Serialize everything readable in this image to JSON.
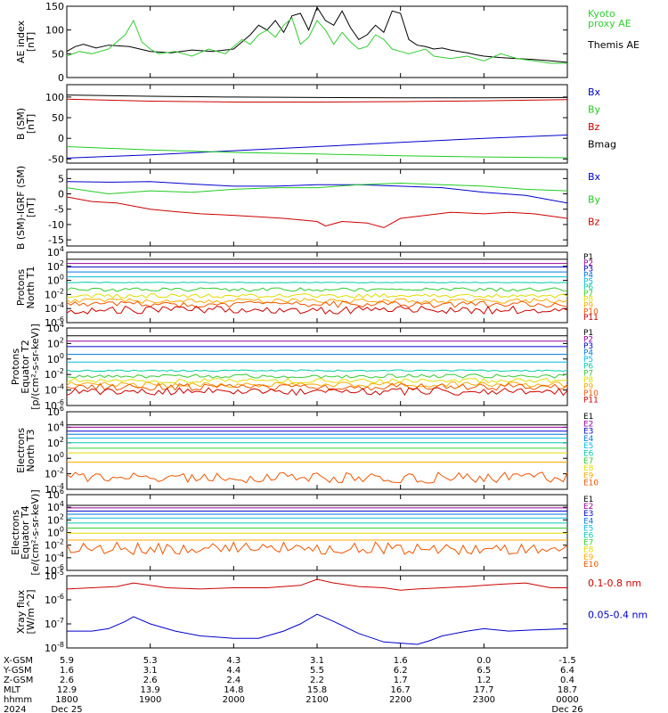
{
  "colors": {
    "black": "#000000",
    "red": "#cc0000",
    "green": "#22cc22",
    "blue": "#0000cc",
    "kyoto": "#33cc33",
    "xray_red": "#cc0000",
    "xray_blue": "#0000cc"
  },
  "channel_colors": [
    "#000000",
    "#990099",
    "#0000cc",
    "#0077dd",
    "#00bbdd",
    "#00ccaa",
    "#33cc33",
    "#dddd00",
    "#ffaa00",
    "#ee5500",
    "#cc0000",
    "#990000"
  ],
  "chart_data": [
    {
      "id": "ae",
      "type": "line",
      "ylabel": "AE index\n[nT]",
      "ylim": [
        0,
        150
      ],
      "yticks": [
        "0",
        "50",
        "100",
        "150"
      ],
      "legend": [
        {
          "name": "Kyoto proxy AE",
          "lines": [
            "Kyoto",
            "proxy AE"
          ],
          "color": "#33cc33"
        },
        {
          "name": "Themis AE",
          "lines": [
            "Themis AE"
          ],
          "color": "#000000"
        }
      ],
      "series": [
        {
          "name": "Themis AE",
          "color": "#000000",
          "x": [
            0,
            0.1,
            0.2,
            0.35,
            0.5,
            0.75,
            1,
            1.25,
            1.5,
            1.75,
            2,
            2.1,
            2.2,
            2.3,
            2.4,
            2.5,
            2.6,
            2.7,
            2.8,
            2.9,
            3,
            3.1,
            3.2,
            3.3,
            3.4,
            3.5,
            3.6,
            3.7,
            3.8,
            3.9,
            4,
            4.1,
            4.2,
            4.3,
            4.4,
            4.5,
            4.6,
            4.7,
            4.8,
            4.9,
            5,
            5.2,
            5.4,
            5.6,
            5.8,
            6
          ],
          "y": [
            55,
            65,
            70,
            62,
            68,
            65,
            55,
            52,
            58,
            55,
            60,
            75,
            90,
            110,
            100,
            120,
            95,
            130,
            135,
            100,
            148,
            120,
            110,
            140,
            105,
            80,
            90,
            110,
            95,
            140,
            135,
            80,
            68,
            65,
            60,
            62,
            58,
            55,
            52,
            48,
            45,
            42,
            40,
            38,
            35,
            32
          ]
        },
        {
          "name": "Kyoto proxy AE",
          "color": "#33cc33",
          "x": [
            0,
            0.15,
            0.3,
            0.5,
            0.7,
            0.8,
            0.9,
            1.0,
            1.1,
            1.3,
            1.5,
            1.7,
            1.9,
            2.0,
            2.1,
            2.2,
            2.3,
            2.4,
            2.5,
            2.6,
            2.7,
            2.8,
            2.9,
            3.0,
            3.1,
            3.2,
            3.3,
            3.4,
            3.5,
            3.6,
            3.7,
            3.8,
            3.9,
            4.0,
            4.1,
            4.2,
            4.3,
            4.4,
            4.6,
            4.8,
            5.0,
            5.2,
            5.4,
            5.6,
            5.8,
            6.0
          ],
          "y": [
            45,
            55,
            50,
            60,
            90,
            120,
            75,
            60,
            50,
            55,
            45,
            60,
            50,
            65,
            80,
            70,
            90,
            100,
            85,
            110,
            125,
            70,
            85,
            120,
            100,
            70,
            95,
            75,
            60,
            65,
            90,
            80,
            60,
            55,
            50,
            55,
            60,
            45,
            40,
            45,
            35,
            50,
            40,
            35,
            30,
            30
          ]
        }
      ]
    },
    {
      "id": "b",
      "type": "line",
      "ylabel": "B (SM)\n[nT]",
      "ylim": [
        -60,
        130
      ],
      "yticks": [
        "-50",
        "0",
        "50",
        "100"
      ],
      "legend": [
        {
          "name": "Bx",
          "lines": [
            "Bx"
          ],
          "color": "#0000cc"
        },
        {
          "name": "By",
          "lines": [
            "By"
          ],
          "color": "#22cc22"
        },
        {
          "name": "Bz",
          "lines": [
            "Bz"
          ],
          "color": "#cc0000"
        },
        {
          "name": "Bmag",
          "lines": [
            "Bmag"
          ],
          "color": "#000000"
        }
      ],
      "series": [
        {
          "name": "Bx",
          "color": "#0000cc",
          "x": [
            0,
            1,
            2,
            3,
            4,
            5,
            6
          ],
          "y": [
            -48,
            -40,
            -30,
            -20,
            -10,
            0,
            8
          ]
        },
        {
          "name": "By",
          "color": "#22cc22",
          "x": [
            0,
            1,
            2,
            3,
            4,
            5,
            6
          ],
          "y": [
            -20,
            -28,
            -34,
            -38,
            -42,
            -45,
            -47
          ]
        },
        {
          "name": "Bz",
          "color": "#cc0000",
          "x": [
            0,
            1,
            2,
            3,
            4,
            5,
            6
          ],
          "y": [
            95,
            90,
            88,
            88,
            89,
            91,
            94
          ]
        },
        {
          "name": "Bmag",
          "color": "#000000",
          "x": [
            0,
            1,
            2,
            3,
            4,
            5,
            6
          ],
          "y": [
            105,
            102,
            100,
            99,
            98,
            98,
            99
          ]
        }
      ]
    },
    {
      "id": "db",
      "type": "line",
      "ylabel": "B (SM)-IGRF (SM)\n[nT]",
      "ylim": [
        -17,
        8
      ],
      "yticks": [
        "-15",
        "-10",
        "-5",
        "0",
        "5"
      ],
      "legend": [
        {
          "name": "Bx",
          "lines": [
            "Bx"
          ],
          "color": "#0000cc"
        },
        {
          "name": "By",
          "lines": [
            "By"
          ],
          "color": "#22cc22"
        },
        {
          "name": "Bz",
          "lines": [
            "Bz"
          ],
          "color": "#cc0000"
        }
      ],
      "series": [
        {
          "name": "Bx",
          "color": "#0000cc",
          "x": [
            0,
            0.5,
            1,
            1.5,
            2,
            2.5,
            3,
            3.5,
            4,
            4.5,
            5,
            5.5,
            6
          ],
          "y": [
            4,
            3.8,
            4,
            3.2,
            2.5,
            2.5,
            3,
            3,
            2.5,
            2,
            0.5,
            -0.5,
            -3
          ]
        },
        {
          "name": "By",
          "color": "#22cc22",
          "x": [
            0,
            0.5,
            1,
            1.5,
            2,
            2.5,
            3,
            3.5,
            4,
            4.5,
            5,
            5.5,
            6
          ],
          "y": [
            2,
            0,
            1,
            0.5,
            1.5,
            2,
            2,
            3,
            3.5,
            3,
            2.5,
            1.5,
            1
          ]
        },
        {
          "name": "Bz",
          "color": "#cc0000",
          "x": [
            0,
            0.3,
            0.6,
            1,
            1.3,
            1.6,
            2,
            2.3,
            2.6,
            3,
            3.1,
            3.3,
            3.6,
            3.8,
            4,
            4.3,
            4.6,
            5,
            5.3,
            5.6,
            6
          ],
          "y": [
            -1,
            -2.5,
            -3,
            -5,
            -5.8,
            -6.5,
            -7,
            -7.5,
            -8,
            -9,
            -10.5,
            -9,
            -9.5,
            -11,
            -8,
            -7,
            -6,
            -6.5,
            -6,
            -6.5,
            -8
          ]
        }
      ]
    },
    {
      "id": "pn",
      "type": "line",
      "ylabel": "Protons\nNorth T1",
      "log": true,
      "ylim": [
        -6,
        4
      ],
      "yticks": [
        "10^-6",
        "10^-4",
        "10^-2",
        "10^0",
        "10^2",
        "10^4"
      ],
      "legend": [
        "P1",
        "P2",
        "P3",
        "P4",
        "P5",
        "P6",
        "P7",
        "P8",
        "P9",
        "P10",
        "P11"
      ],
      "channel_log_values": [
        3,
        2.4,
        1.9,
        1.2,
        0.5,
        -0.3,
        -1.3,
        -2.2,
        -2.9,
        -3.4,
        -4.2
      ],
      "noise": [
        0,
        0,
        0,
        0,
        0,
        0.05,
        0.25,
        0.3,
        0.35,
        0.45,
        0.55
      ]
    },
    {
      "id": "pe",
      "type": "line",
      "ylabel": "Protons\nEquator T2\n[p/(cm²-s-sr-keV)]",
      "log": true,
      "ylim": [
        -6,
        4
      ],
      "yticks": [
        "10^-6",
        "10^-4",
        "10^-2",
        "10^0",
        "10^2",
        "10^4"
      ],
      "legend": [
        "P1",
        "P2",
        "P3",
        "P4",
        "P5",
        "P6",
        "P7",
        "P8",
        "P9",
        "P10",
        "P11"
      ],
      "channel_log_values": [
        3,
        2.3,
        1.6,
        0.6,
        -0.4,
        -1.5,
        -2.2,
        -2.8,
        -3.3,
        -3.6,
        -4.2
      ],
      "noise": [
        0,
        0,
        0,
        0,
        0,
        0.1,
        0.25,
        0.3,
        0.35,
        0.45,
        0.5
      ]
    },
    {
      "id": "en",
      "type": "line",
      "ylabel": "Electrons\nNorth T3",
      "log": true,
      "ylim": [
        -4,
        6
      ],
      "yticks": [
        "10^-4",
        "10^-2",
        "10^0",
        "10^2",
        "10^4",
        "10^6"
      ],
      "legend": [
        "E1",
        "E2",
        "E3",
        "E4",
        "E5",
        "E6",
        "E7",
        "E8",
        "E9",
        "E10"
      ],
      "channel_log_values": [
        4.3,
        4.0,
        3.5,
        3.1,
        2.6,
        2.0,
        1.3,
        0.7,
        -0.5,
        -2.5
      ],
      "noise": [
        0,
        0,
        0,
        0,
        0,
        0,
        0,
        0,
        0,
        0.7
      ]
    },
    {
      "id": "ee",
      "type": "line",
      "ylabel": "Electrons\nEquator T4\n[e/(cm²-s-sr-keV)]",
      "log": true,
      "ylim": [
        -6,
        6
      ],
      "yticks": [
        "10^-6",
        "10^-4",
        "10^-2",
        "10^0",
        "10^2",
        "10^4",
        "10^6"
      ],
      "legend": [
        "E1",
        "E2",
        "E3",
        "E4",
        "E5",
        "E6",
        "E7",
        "E8",
        "E9",
        "E10"
      ],
      "channel_log_values": [
        4.3,
        3.9,
        3.4,
        2.9,
        2.3,
        1.5,
        0.7,
        -0.1,
        -1.2,
        -2.5
      ],
      "noise": [
        0,
        0,
        0,
        0,
        0,
        0,
        0,
        0,
        0,
        1.0
      ]
    },
    {
      "id": "xray",
      "type": "line",
      "ylabel": "Xray flux\n[W/m^2]",
      "log": true,
      "ylim": [
        -8,
        -5
      ],
      "yticks": [
        "10^-8",
        "10^-7",
        "10^-6",
        "10^-5"
      ],
      "legend": [
        {
          "name": "0.1-0.8 nm",
          "lines": [
            "0.1-0.8 nm"
          ],
          "color": "#cc0000"
        },
        {
          "name": "0.05-0.4 nm",
          "lines": [
            "0.05-0.4 nm"
          ],
          "color": "#0000cc"
        }
      ],
      "series": [
        {
          "name": "0.1-0.8 nm",
          "color": "#cc0000",
          "x": [
            0,
            0.3,
            0.6,
            0.8,
            1.0,
            1.2,
            1.6,
            2.0,
            2.4,
            2.8,
            3.0,
            3.2,
            3.5,
            3.8,
            4.0,
            4.2,
            4.5,
            4.8,
            5.0,
            5.2,
            5.5,
            5.8,
            6.0
          ],
          "y": [
            -5.55,
            -5.5,
            -5.45,
            -5.3,
            -5.4,
            -5.5,
            -5.55,
            -5.5,
            -5.5,
            -5.4,
            -5.15,
            -5.3,
            -5.45,
            -5.5,
            -5.6,
            -5.55,
            -5.5,
            -5.45,
            -5.4,
            -5.35,
            -5.3,
            -5.5,
            -5.5
          ]
        },
        {
          "name": "0.05-0.4 nm",
          "color": "#0000cc",
          "x": [
            0,
            0.3,
            0.5,
            0.7,
            0.8,
            1.0,
            1.3,
            1.6,
            2.0,
            2.3,
            2.6,
            2.8,
            3.0,
            3.2,
            3.5,
            3.8,
            4.0,
            4.2,
            4.35,
            4.5,
            4.8,
            5.0,
            5.3,
            5.6,
            6.0
          ],
          "y": [
            -7.3,
            -7.3,
            -7.2,
            -6.9,
            -6.7,
            -7.0,
            -7.3,
            -7.5,
            -7.6,
            -7.6,
            -7.3,
            -7.0,
            -6.6,
            -6.9,
            -7.4,
            -7.75,
            -7.8,
            -7.85,
            -7.7,
            -7.5,
            -7.3,
            -7.2,
            -7.3,
            -7.25,
            -7.2
          ]
        }
      ]
    }
  ],
  "ephemeris": {
    "labels": [
      "X-GSM",
      "Y-GSM",
      "Z-GSM",
      "MLT",
      "hhmm",
      "2024"
    ],
    "columns": [
      [
        "5.9",
        "1.6",
        "2.6",
        "12.9",
        "1800",
        "Dec 25"
      ],
      [
        "5.3",
        "3.1",
        "2.6",
        "13.9",
        "1900",
        ""
      ],
      [
        "4.3",
        "4.4",
        "2.4",
        "14.8",
        "2000",
        ""
      ],
      [
        "3.1",
        "5.5",
        "2.2",
        "15.8",
        "2100",
        ""
      ],
      [
        "1.6",
        "6.2",
        "1.7",
        "16.7",
        "2200",
        ""
      ],
      [
        "0.0",
        "6.5",
        "1.2",
        "17.7",
        "2300",
        ""
      ],
      [
        "-1.5",
        "6.4",
        "0.4",
        "18.7",
        "0000",
        "Dec 26"
      ]
    ]
  }
}
